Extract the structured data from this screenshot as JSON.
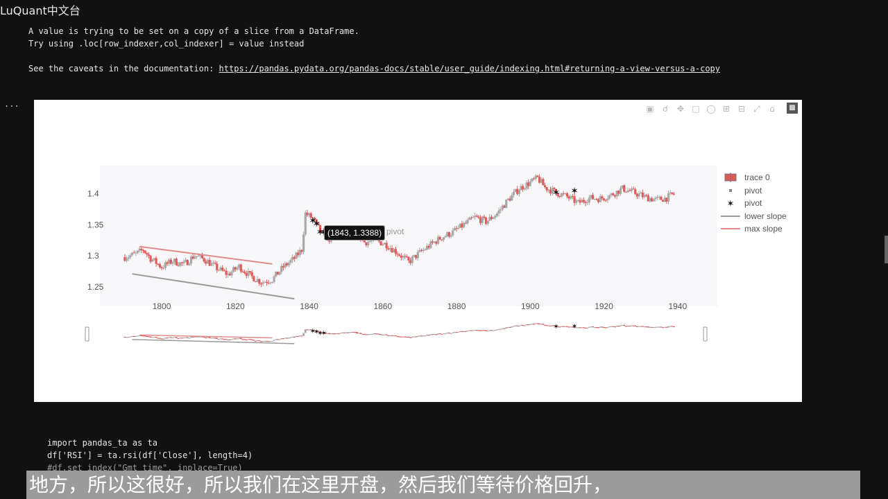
{
  "watermark": "LuQuant中文台",
  "warning": {
    "line1": "A value is trying to be set on a copy of a slice from a DataFrame.",
    "line2": "Try using .loc[row_indexer,col_indexer] = value instead",
    "line3_prefix": "See the caveats in the documentation: ",
    "line3_link": "https://pandas.pydata.org/pandas-docs/stable/user_guide/indexing.html#returning-a-view-versus-a-copy"
  },
  "output_prompt": "...",
  "modebar_icons": [
    "camera-icon",
    "zoom-icon",
    "pan-icon",
    "box-select-icon",
    "lasso-icon",
    "zoom-in-icon",
    "zoom-out-icon",
    "autoscale-icon",
    "reset-axes-icon",
    "plotly-logo-icon"
  ],
  "colors": {
    "increasing": "#a8a8a8",
    "decreasing": "#e05a5a",
    "pivot": "#111111",
    "lower_slope": "#9a9a9a",
    "max_slope": "#e08a8a"
  },
  "tooltip": {
    "text": "(1843, 1.3388)",
    "name": "pivot"
  },
  "chart_data": {
    "type": "candlestick",
    "x_ticks": [
      "1800",
      "1820",
      "1840",
      "1860",
      "1880",
      "1900",
      "1920",
      "1940"
    ],
    "y_ticks": [
      "1.25",
      "1.3",
      "1.35",
      "1.4"
    ],
    "xlim": [
      1787,
      1947
    ],
    "ylim": [
      1.23,
      1.445
    ],
    "legend_placement": "right",
    "series": [
      {
        "name": "trace 0",
        "kind": "candlestick"
      },
      {
        "name": "pivot",
        "kind": "marker-small"
      },
      {
        "name": "pivot",
        "kind": "marker-star"
      },
      {
        "name": "lower slope",
        "kind": "line",
        "points": [
          [
            1792,
            1.271
          ],
          [
            1836,
            1.231
          ]
        ]
      },
      {
        "name": "max slope",
        "kind": "line",
        "points": [
          [
            1794,
            1.315
          ],
          [
            1830,
            1.287
          ]
        ]
      }
    ],
    "close_path": [
      [
        1790,
        1.298
      ],
      [
        1793,
        1.303
      ],
      [
        1795,
        1.31
      ],
      [
        1797,
        1.296
      ],
      [
        1800,
        1.282
      ],
      [
        1803,
        1.292
      ],
      [
        1806,
        1.286
      ],
      [
        1809,
        1.301
      ],
      [
        1812,
        1.293
      ],
      [
        1815,
        1.28
      ],
      [
        1818,
        1.27
      ],
      [
        1821,
        1.283
      ],
      [
        1824,
        1.268
      ],
      [
        1827,
        1.258
      ],
      [
        1830,
        1.262
      ],
      [
        1833,
        1.282
      ],
      [
        1836,
        1.296
      ],
      [
        1838,
        1.31
      ],
      [
        1839,
        1.368
      ],
      [
        1841,
        1.36
      ],
      [
        1843,
        1.339
      ],
      [
        1846,
        1.325
      ],
      [
        1849,
        1.335
      ],
      [
        1852,
        1.341
      ],
      [
        1855,
        1.322
      ],
      [
        1858,
        1.325
      ],
      [
        1861,
        1.318
      ],
      [
        1864,
        1.305
      ],
      [
        1867,
        1.29
      ],
      [
        1870,
        1.305
      ],
      [
        1873,
        1.318
      ],
      [
        1876,
        1.33
      ],
      [
        1879,
        1.338
      ],
      [
        1882,
        1.35
      ],
      [
        1885,
        1.362
      ],
      [
        1888,
        1.355
      ],
      [
        1891,
        1.368
      ],
      [
        1894,
        1.39
      ],
      [
        1897,
        1.408
      ],
      [
        1900,
        1.418
      ],
      [
        1902,
        1.425
      ],
      [
        1904,
        1.41
      ],
      [
        1907,
        1.402
      ],
      [
        1910,
        1.395
      ],
      [
        1913,
        1.385
      ],
      [
        1916,
        1.393
      ],
      [
        1919,
        1.392
      ],
      [
        1922,
        1.398
      ],
      [
        1925,
        1.408
      ],
      [
        1928,
        1.402
      ],
      [
        1931,
        1.395
      ],
      [
        1934,
        1.39
      ],
      [
        1937,
        1.393
      ],
      [
        1939,
        1.4
      ]
    ],
    "star_pivots": [
      [
        1841,
        1.357
      ],
      [
        1842,
        1.352
      ],
      [
        1843,
        1.3388
      ],
      [
        1844,
        1.338
      ],
      [
        1907,
        1.402
      ],
      [
        1912,
        1.405
      ]
    ]
  },
  "legend": {
    "trace0": "trace 0",
    "pivot_small": "pivot",
    "pivot_star": "pivot",
    "lower_slope": "lower slope",
    "max_slope": "max slope"
  },
  "code": {
    "line1": "import pandas_ta as ta",
    "line2": "df['RSI'] = ta.rsi(df['Close'], length=4)",
    "line3": "#df.set_index(\"Gmt time\", inplace=True)"
  },
  "subtitle": "地方，所以这很好，所以我们在这里开盘，然后我们等待价格回升，"
}
